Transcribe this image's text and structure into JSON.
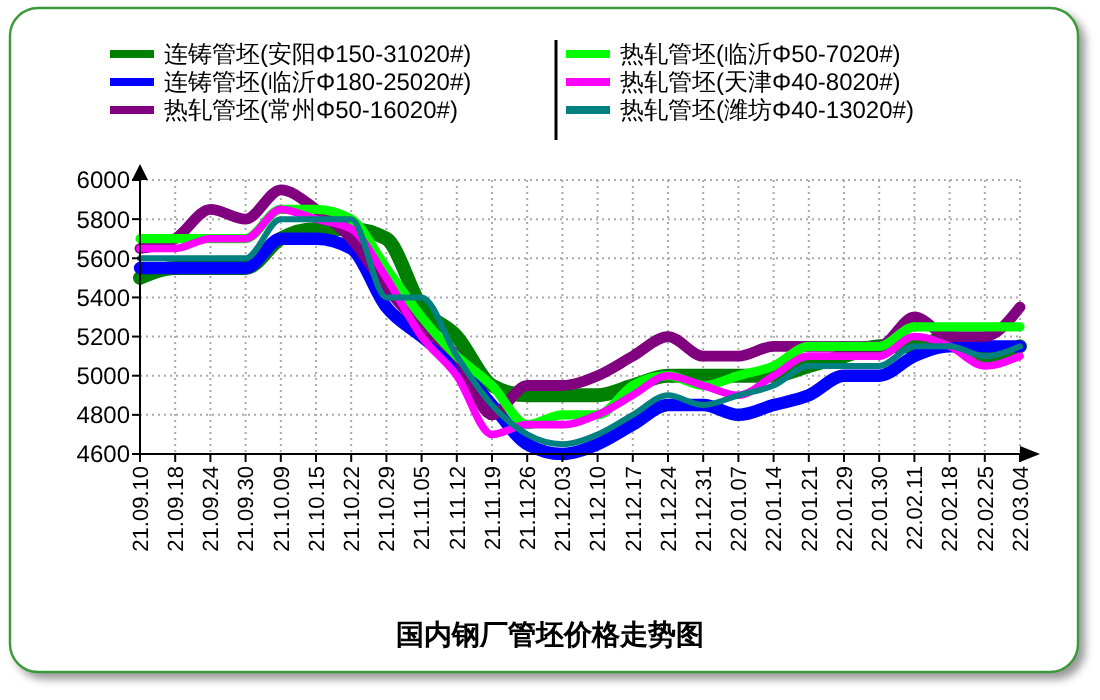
{
  "chart_data": {
    "type": "line",
    "title": "国内钢厂管坯价格走势图",
    "categories": [
      "21.09.10",
      "21.09.18",
      "21.09.24",
      "21.09.30",
      "21.10.09",
      "21.10.15",
      "21.10.22",
      "21.10.29",
      "21.11.05",
      "21.11.12",
      "21.11.19",
      "21.11.26",
      "21.12.03",
      "21.12.10",
      "21.12.17",
      "21.12.24",
      "21.12.31",
      "22.01.07",
      "22.01.14",
      "22.01.21",
      "22.01.29",
      "22.01.30",
      "22.02.11",
      "22.02.18",
      "22.02.25",
      "22.03.04"
    ],
    "ylim": [
      4600,
      6000
    ],
    "yticks": [
      4600,
      4800,
      5000,
      5200,
      5400,
      5600,
      5800,
      6000
    ],
    "grid": true,
    "legend": "top",
    "line_style": "solid",
    "marker": "none",
    "series": [
      {
        "name": "连铸管坯(安阳Φ150-31020#)",
        "color": "#008000",
        "values": [
          5500,
          5550,
          5550,
          5550,
          5700,
          5750,
          5750,
          5700,
          5350,
          5200,
          4950,
          4900,
          4900,
          4900,
          4950,
          5000,
          5000,
          5000,
          5000,
          5050,
          5100,
          5150,
          5150,
          5200,
          5100,
          5150
        ]
      },
      {
        "name": "连铸管坯(临沂Φ180-25020#)",
        "color": "#0000ff",
        "values": [
          5550,
          5550,
          5550,
          5550,
          5700,
          5700,
          5650,
          5350,
          5200,
          5050,
          4850,
          4650,
          4600,
          4650,
          4750,
          4850,
          4850,
          4800,
          4850,
          4900,
          5000,
          5000,
          5100,
          5150,
          5150,
          5150
        ]
      },
      {
        "name": "热轧管坯(常州Φ50-16020#)",
        "color": "#800080",
        "values": [
          5650,
          5700,
          5850,
          5800,
          5950,
          5850,
          5700,
          5450,
          5250,
          5100,
          4800,
          4950,
          4950,
          5000,
          5100,
          5200,
          5100,
          5100,
          5150,
          5150,
          5150,
          5150,
          5300,
          5200,
          5200,
          5350
        ]
      },
      {
        "name": "热轧管坯(临沂Φ50-7020#)",
        "color": "#00ff00",
        "values": [
          5700,
          5700,
          5700,
          5700,
          5850,
          5850,
          5800,
          5550,
          5300,
          5100,
          4950,
          4750,
          4800,
          4800,
          4950,
          5000,
          4950,
          5000,
          5050,
          5150,
          5150,
          5150,
          5250,
          5250,
          5250,
          5250
        ]
      },
      {
        "name": "热轧管坯(天津Φ40-8020#)",
        "color": "#ff00ff",
        "values": [
          5650,
          5650,
          5700,
          5700,
          5850,
          5800,
          5750,
          5500,
          5200,
          5000,
          4700,
          4750,
          4750,
          4800,
          4900,
          5000,
          4950,
          4900,
          5000,
          5100,
          5100,
          5100,
          5200,
          5150,
          5050,
          5100
        ]
      },
      {
        "name": "热轧管坯(潍坊Φ40-13020#)",
        "color": "#008080",
        "values": [
          5600,
          5600,
          5600,
          5600,
          5800,
          5800,
          5800,
          5400,
          5400,
          5100,
          4850,
          4700,
          4650,
          4700,
          4800,
          4900,
          4850,
          4900,
          4950,
          5050,
          5050,
          5050,
          5150,
          5150,
          5100,
          5150
        ]
      }
    ]
  }
}
